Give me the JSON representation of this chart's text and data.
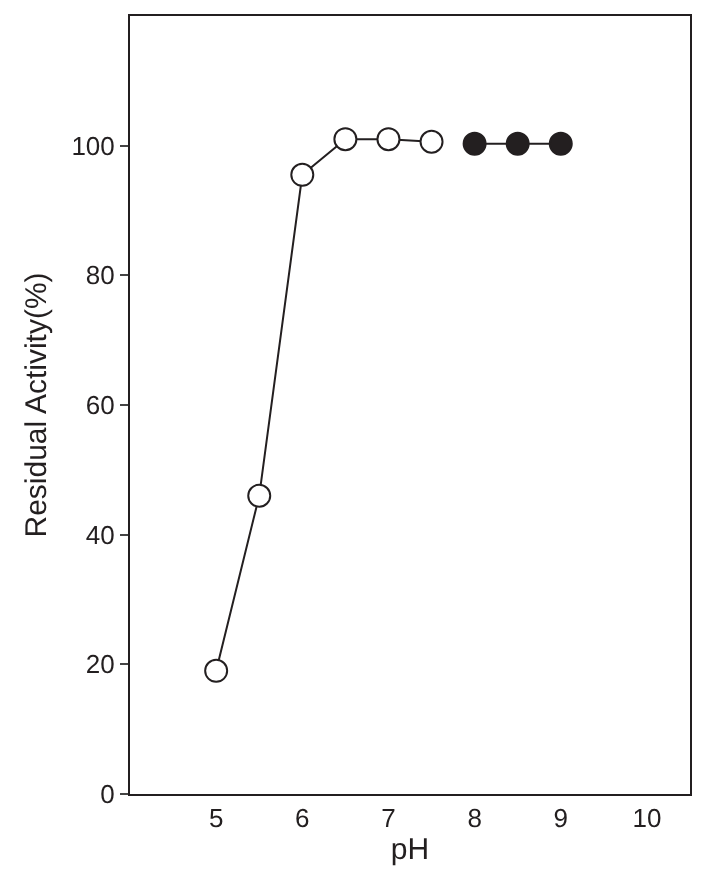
{
  "chart_data": {
    "type": "line",
    "xlabel": "pH",
    "ylabel": "Residual Activity(%)",
    "xlim": [
      4,
      10.5
    ],
    "xticks": [
      5,
      6,
      7,
      8,
      9,
      10
    ],
    "ylim": [
      0,
      120
    ],
    "yticks": [
      0,
      20,
      40,
      60,
      80,
      100
    ],
    "marker": "circle",
    "line_style": "solid",
    "series": [
      {
        "color": "#ffffff",
        "x": [
          5,
          5.5,
          6,
          6.5,
          7,
          7.5
        ],
        "values": [
          19,
          46,
          95.5,
          101,
          101,
          100.6
        ]
      },
      {
        "color": "#231f20",
        "x": [
          8,
          8.5,
          9
        ],
        "values": [
          100.3,
          100.3,
          100.3
        ]
      }
    ]
  }
}
